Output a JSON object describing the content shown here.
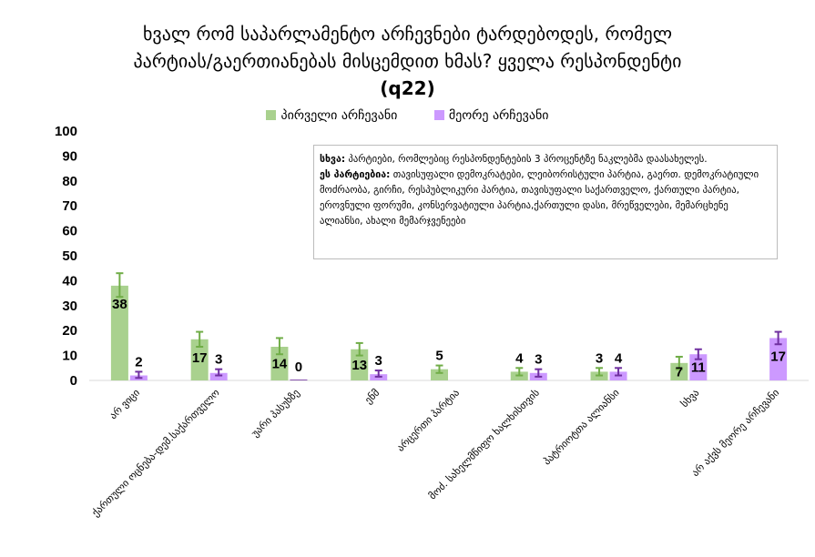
{
  "title": {
    "line1": "ხვალ რომ საპარლამენტო არჩევნები ტარდებოდეს, რომელ",
    "line2": "პარტიას/გაერთიანებას მისცემდით ხმას? ყველა რესპონდენტი",
    "line3": "(q22)"
  },
  "annotation": {
    "other_label": "სხვა:",
    "other_text": " პარტიები, რომლებიც რესპონდენტების 3 პროცენტზე ნაკლებმა დაასახელეს.",
    "parties_label": "ეს პარტიებია:",
    "parties_text": " თავისუფალი დემოკრატები, ლეიბორისტული პარტია, გაერთ. დემოკრატიული მოძრაობა, გირჩი, რესპუბლიკური პარტია, თავისუფალი საქართველო, ქართული პარტია, ეროვნული ფორუმი, კონსერვატიული პარტია,ქართული დასი, მრეწველები, მემარცხენე ალიანსი, ახალი მემარჯვენეები"
  },
  "chart_data": {
    "type": "bar",
    "categories": [
      "არ ვიცი",
      "ქართული ოცნება-დემ.საქართველო",
      "უარი პასუხზე",
      "ენმ",
      "არცერთი პარტია",
      "მოძ. სახელმწიფო ხალხისთვის",
      "პატრიოტთა ალიანსი",
      "სხვა",
      "არ აქვს მეორე არჩევანი"
    ],
    "series": [
      {
        "name": "პირველი არჩევანი",
        "color": "#a9d18e",
        "errcolor": "#70ad47",
        "values": [
          38,
          16.5,
          13.5,
          12.5,
          4.5,
          3.5,
          3.5,
          7,
          null
        ],
        "labels": [
          "38",
          "17",
          "14",
          "13",
          "5",
          "4",
          "3",
          "7",
          ""
        ],
        "err_low": [
          33.5,
          13.5,
          10.5,
          10,
          3,
          2,
          2,
          4.5,
          null
        ],
        "err_high": [
          43,
          19.5,
          17,
          15,
          6,
          5,
          5,
          9.5,
          null
        ]
      },
      {
        "name": "მეორე არჩევანი",
        "color": "#cc99ff",
        "errcolor": "#7030a0",
        "values": [
          2,
          3,
          null,
          2.5,
          null,
          3,
          3.5,
          10.5,
          17
        ],
        "labels": [
          "2",
          "3",
          "0",
          "3",
          "",
          "3",
          "4",
          "11",
          "17"
        ],
        "err_low": [
          1,
          2,
          null,
          1.5,
          null,
          1.5,
          2,
          8.5,
          14.5
        ],
        "err_high": [
          3.5,
          4.5,
          null,
          4,
          null,
          4.5,
          5,
          12.5,
          19.5
        ]
      }
    ],
    "zero_marker_value": 0.3,
    "ylim": [
      0,
      100
    ],
    "yticks": [
      0,
      10,
      20,
      30,
      40,
      50,
      60,
      70,
      80,
      90,
      100
    ],
    "grid": false,
    "legend_position": "top-center"
  }
}
